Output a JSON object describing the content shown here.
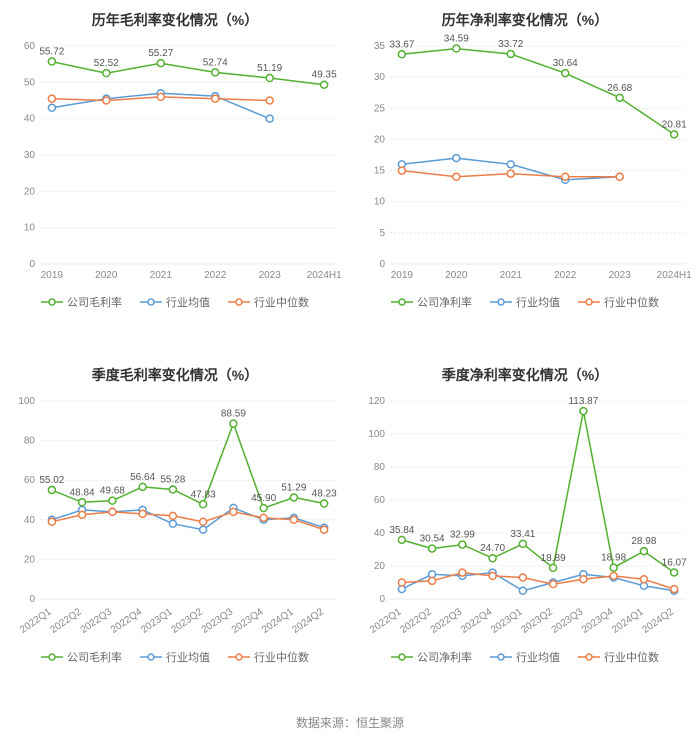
{
  "footer": "数据来源：恒生聚源",
  "colors": {
    "series_company": "#54b030",
    "series_avg": "#5b9bd5",
    "series_median": "#ed7d47",
    "grid": "#e8e8e8",
    "axis_text": "#888888",
    "value_text": "#555555",
    "background": "#ffffff",
    "title_text": "#333333"
  },
  "legend_labels": {
    "gross_company": "公司毛利率",
    "net_company": "公司净利率",
    "industry_avg": "行业均值",
    "industry_median": "行业中位数"
  },
  "charts": [
    {
      "id": "annual_gross",
      "type": "line",
      "title": "历年毛利率变化情况（%）",
      "categories": [
        "2019",
        "2020",
        "2021",
        "2022",
        "2023",
        "2024H1"
      ],
      "ylim": [
        0,
        60
      ],
      "ytick_step": 10,
      "x_label_rotate": 0,
      "line_width": 1.5,
      "marker_radius": 3.5,
      "title_fontsize": 14,
      "axis_fontsize": 10,
      "value_fontsize": 10,
      "series": [
        {
          "key": "company",
          "legend": "gross_company",
          "color": "#54b030",
          "values": [
            55.72,
            52.52,
            55.27,
            52.74,
            51.19,
            49.35
          ],
          "show_values": true
        },
        {
          "key": "avg",
          "legend": "industry_avg",
          "color": "#5b9bd5",
          "values": [
            43.0,
            45.5,
            47.0,
            46.2,
            40.0,
            null
          ],
          "show_values": false
        },
        {
          "key": "median",
          "legend": "industry_median",
          "color": "#ed7d47",
          "values": [
            45.5,
            45.0,
            46.0,
            45.5,
            45.0,
            null
          ],
          "show_values": false
        }
      ]
    },
    {
      "id": "annual_net",
      "type": "line",
      "title": "历年净利率变化情况（%）",
      "categories": [
        "2019",
        "2020",
        "2021",
        "2022",
        "2023",
        "2024H1"
      ],
      "ylim": [
        0,
        35
      ],
      "ytick_step": 5,
      "x_label_rotate": 0,
      "line_width": 1.5,
      "marker_radius": 3.5,
      "title_fontsize": 14,
      "axis_fontsize": 10,
      "value_fontsize": 10,
      "series": [
        {
          "key": "company",
          "legend": "net_company",
          "color": "#54b030",
          "values": [
            33.67,
            34.59,
            33.72,
            30.64,
            26.68,
            20.81
          ],
          "show_values": true
        },
        {
          "key": "avg",
          "legend": "industry_avg",
          "color": "#5b9bd5",
          "values": [
            16.0,
            17.0,
            16.0,
            13.5,
            14.0,
            null
          ],
          "show_values": false
        },
        {
          "key": "median",
          "legend": "industry_median",
          "color": "#ed7d47",
          "values": [
            15.0,
            14.0,
            14.5,
            14.0,
            14.0,
            null
          ],
          "show_values": false
        }
      ]
    },
    {
      "id": "quarterly_gross",
      "type": "line",
      "title": "季度毛利率变化情况（%）",
      "categories": [
        "2022Q1",
        "2022Q2",
        "2022Q3",
        "2022Q4",
        "2023Q1",
        "2023Q2",
        "2023Q3",
        "2023Q4",
        "2024Q1",
        "2024Q2"
      ],
      "ylim": [
        0,
        100
      ],
      "ytick_step": 20,
      "x_label_rotate": -35,
      "line_width": 1.5,
      "marker_radius": 3.5,
      "title_fontsize": 14,
      "axis_fontsize": 10,
      "value_fontsize": 10,
      "series": [
        {
          "key": "company",
          "legend": "gross_company",
          "color": "#54b030",
          "values": [
            55.02,
            48.84,
            49.68,
            56.64,
            55.28,
            47.83,
            88.59,
            45.9,
            51.29,
            48.23
          ],
          "show_values": true
        },
        {
          "key": "avg",
          "legend": "industry_avg",
          "color": "#5b9bd5",
          "values": [
            40.0,
            45.0,
            44.0,
            45.0,
            38.0,
            35.0,
            46.0,
            40.0,
            41.0,
            36.0
          ],
          "show_values": false
        },
        {
          "key": "median",
          "legend": "industry_median",
          "color": "#ed7d47",
          "values": [
            39.0,
            42.5,
            44.0,
            43.0,
            42.0,
            39.0,
            44.0,
            41.0,
            40.0,
            35.0
          ],
          "show_values": false
        }
      ]
    },
    {
      "id": "quarterly_net",
      "type": "line",
      "title": "季度净利率变化情况（%）",
      "categories": [
        "2022Q1",
        "2022Q2",
        "2022Q3",
        "2022Q4",
        "2023Q1",
        "2023Q2",
        "2023Q3",
        "2023Q4",
        "2024Q1",
        "2024Q2"
      ],
      "ylim": [
        0,
        120
      ],
      "ytick_step": 20,
      "x_label_rotate": -35,
      "line_width": 1.5,
      "marker_radius": 3.5,
      "title_fontsize": 14,
      "axis_fontsize": 10,
      "value_fontsize": 10,
      "series": [
        {
          "key": "company",
          "legend": "net_company",
          "color": "#54b030",
          "values": [
            35.84,
            30.54,
            32.99,
            24.7,
            33.41,
            18.89,
            113.87,
            18.98,
            28.98,
            16.07
          ],
          "show_values": true
        },
        {
          "key": "avg",
          "legend": "industry_avg",
          "color": "#5b9bd5",
          "values": [
            6.0,
            15.0,
            14.0,
            16.0,
            5.0,
            10.0,
            15.0,
            13.0,
            8.0,
            5.0
          ],
          "show_values": false
        },
        {
          "key": "median",
          "legend": "industry_median",
          "color": "#ed7d47",
          "values": [
            10.0,
            11.0,
            16.0,
            14.0,
            13.0,
            9.0,
            12.0,
            14.0,
            12.0,
            6.0
          ],
          "show_values": false
        }
      ]
    }
  ]
}
